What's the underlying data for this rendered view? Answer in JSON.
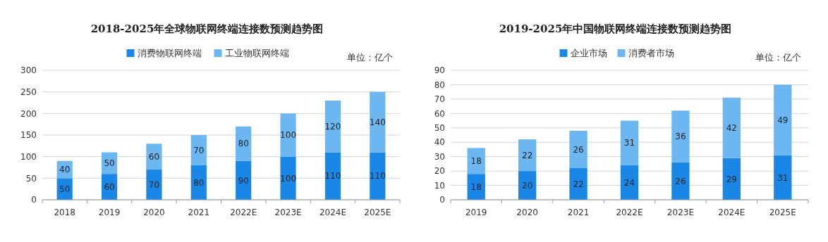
{
  "chart_data": [
    {
      "type": "bar",
      "title": "2018-2025年全球物联网终端连接数预测趋势图",
      "categories": [
        "2018",
        "2019",
        "2020",
        "2021",
        "2022E",
        "2023E",
        "2024E",
        "2025E"
      ],
      "stacked": true,
      "series": [
        {
          "name": "消费物联网终端",
          "color": "#1a87e6",
          "values": [
            50,
            60,
            70,
            80,
            90,
            100,
            110,
            110
          ]
        },
        {
          "name": "工业物联网终端",
          "color": "#6cb6f2",
          "values": [
            40,
            50,
            60,
            70,
            80,
            100,
            120,
            140
          ]
        }
      ],
      "ylim": [
        0,
        300
      ],
      "yticks": [
        0,
        50,
        100,
        150,
        200,
        250,
        300
      ],
      "grid": "y",
      "legend": "top",
      "data_labels": true,
      "annotations": [
        "单位：亿个"
      ]
    },
    {
      "type": "bar",
      "title": "2019-2025年中国物联网终端连接数预测趋势图",
      "categories": [
        "2019",
        "2020",
        "2021",
        "2022E",
        "2023E",
        "2024E",
        "2025E"
      ],
      "stacked": true,
      "series": [
        {
          "name": "企业市场",
          "color": "#1a87e6",
          "values": [
            18,
            20,
            22,
            24,
            26,
            29,
            31
          ]
        },
        {
          "name": "消费者市场",
          "color": "#6cb6f2",
          "values": [
            18,
            22,
            26,
            31,
            36,
            42,
            49
          ]
        }
      ],
      "ylim": [
        0,
        90
      ],
      "yticks": [
        0,
        10,
        20,
        30,
        40,
        50,
        60,
        70,
        80,
        90
      ],
      "grid": "y",
      "legend": "top",
      "data_labels": true,
      "annotations": [
        "单位：亿个"
      ]
    }
  ]
}
